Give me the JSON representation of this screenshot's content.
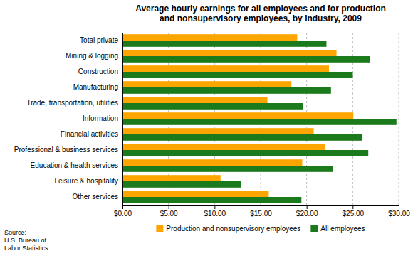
{
  "chart_data": {
    "type": "bar",
    "orientation": "horizontal",
    "title": "Average hourly earnings for all employees and for production\nand nonsupervisory employees, by industry, 2009",
    "categories": [
      "Total private",
      "Mining & logging",
      "Construction",
      "Manufacturing",
      "Trade, transportation, utilities",
      "Information",
      "Financial activities",
      "Professional & business services",
      "Education & health services",
      "Leisure & hospitality",
      "Other services"
    ],
    "series": [
      {
        "name": "Production and nonsupervisory employees",
        "color": "#FFA500",
        "values": [
          18.97,
          23.24,
          22.42,
          18.34,
          15.74,
          25.07,
          20.76,
          21.97,
          19.52,
          10.65,
          15.88
        ]
      },
      {
        "name": "All employees",
        "color": "#1B7A1B",
        "values": [
          22.15,
          26.88,
          25.01,
          22.64,
          19.57,
          29.75,
          26.06,
          26.69,
          22.84,
          12.89,
          19.43
        ]
      }
    ],
    "xlim": [
      0,
      30
    ],
    "xticks": [
      {
        "value": 0,
        "label": "$0.00"
      },
      {
        "value": 5,
        "label": "$5.00"
      },
      {
        "value": 10,
        "label": "$10.00"
      },
      {
        "value": 15,
        "label": "$15.00"
      },
      {
        "value": 20,
        "label": "$20.00"
      },
      {
        "value": 25,
        "label": "$25.00"
      },
      {
        "value": 30,
        "label": "$30.00"
      }
    ],
    "grid": true,
    "legend": "bottom",
    "source": "Source:\nU.S. Bureau of\nLabor Statistics"
  }
}
